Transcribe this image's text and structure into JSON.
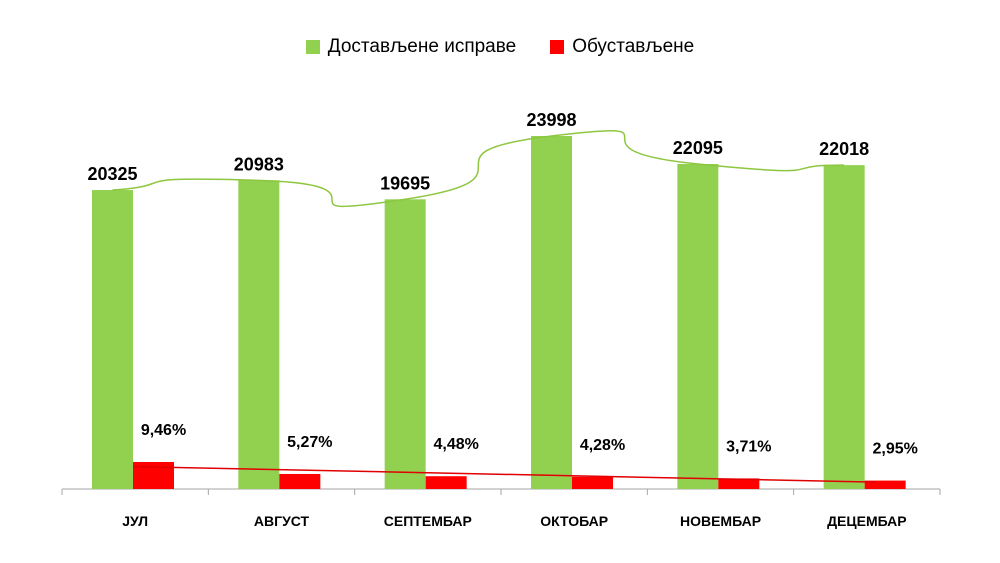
{
  "chart_data": {
    "type": "bar",
    "categories": [
      "ЈУЛ",
      "АВГУСТ",
      "СЕПТЕМБАР",
      "ОКТОБАР",
      "НОВЕМБАР",
      "ДЕЦЕМБАР"
    ],
    "series": [
      {
        "name": "Достављене исправе",
        "color": "#92d050",
        "values": [
          20325,
          20983,
          19695,
          23998,
          22095,
          22018
        ],
        "labels": [
          "20325",
          "20983",
          "19695",
          "23998",
          "22095",
          "22018"
        ]
      },
      {
        "name": "Обустављене",
        "color": "#ff0000",
        "values": [
          9.46,
          5.27,
          4.48,
          4.28,
          3.71,
          2.95
        ],
        "labels": [
          "9,46%",
          "5,27%",
          "4,48%",
          "4,28%",
          "3,71%",
          "2,95%"
        ]
      }
    ],
    "trendlines": [
      {
        "series": "Достављене исправе",
        "color": "#8dc63f",
        "style": "smooth"
      },
      {
        "series": "Обустављене",
        "color": "#e00000",
        "style": "linear"
      }
    ],
    "ylim": [
      0,
      26500
    ],
    "grid": false,
    "legend": "top-center"
  }
}
